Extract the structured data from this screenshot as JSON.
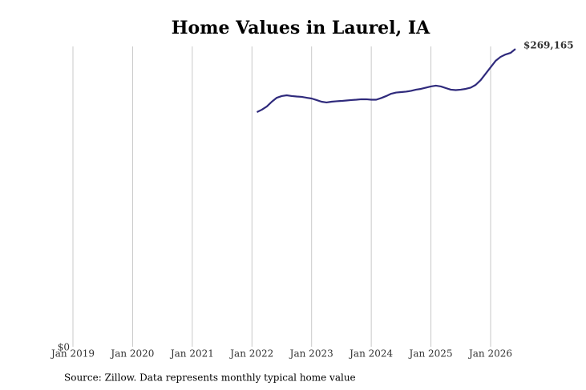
{
  "chart_data": {
    "type": "line",
    "title": "Home Values in Laurel, IA",
    "source": "Source: Zillow. Data represents monthly typical home value",
    "x": [
      "2022-02",
      "2022-03",
      "2022-04",
      "2022-05",
      "2022-06",
      "2022-07",
      "2022-08",
      "2022-09",
      "2022-10",
      "2022-11",
      "2022-12",
      "2023-01",
      "2023-02",
      "2023-03",
      "2023-04",
      "2023-05",
      "2023-06",
      "2023-07",
      "2023-08",
      "2023-09",
      "2023-10",
      "2023-11",
      "2023-12",
      "2024-01",
      "2024-02",
      "2024-03",
      "2024-04",
      "2024-05",
      "2024-06",
      "2024-07",
      "2024-08",
      "2024-09",
      "2024-10",
      "2024-11",
      "2024-12",
      "2025-01",
      "2025-02",
      "2025-03",
      "2025-04",
      "2025-05",
      "2025-06",
      "2025-07",
      "2025-08",
      "2025-09",
      "2025-10",
      "2025-11",
      "2025-12",
      "2026-01",
      "2026-02",
      "2026-03",
      "2026-04",
      "2026-05",
      "2026-06"
    ],
    "series": [
      {
        "name": "Typical home value",
        "color": "#2f2a7c",
        "values": [
          212100,
          214300,
          217200,
          221500,
          225100,
          226600,
          227300,
          226600,
          226200,
          225900,
          225100,
          224400,
          223000,
          221500,
          220800,
          221500,
          221900,
          222200,
          222600,
          223000,
          223300,
          223700,
          223700,
          223300,
          223300,
          224800,
          226600,
          228700,
          229800,
          230200,
          230600,
          231300,
          232400,
          233100,
          234200,
          235300,
          236000,
          235300,
          233800,
          232400,
          232000,
          232400,
          233100,
          234200,
          236700,
          241000,
          246800,
          252600,
          258400,
          262000,
          264200,
          265600,
          269165
        ],
        "value_labels": [
          null,
          null,
          null,
          null,
          null,
          null,
          null,
          null,
          null,
          null,
          null,
          null,
          null,
          null,
          null,
          null,
          null,
          null,
          null,
          null,
          null,
          null,
          null,
          null,
          null,
          null,
          null,
          null,
          null,
          null,
          null,
          null,
          null,
          null,
          null,
          null,
          null,
          null,
          null,
          null,
          null,
          null,
          null,
          null,
          null,
          null,
          null,
          null,
          null,
          null,
          null,
          null,
          "$269,165"
        ]
      }
    ],
    "xlim": [
      "2019-01",
      "2026-06"
    ],
    "xticks": [
      {
        "value": "2019-01",
        "label": "Jan 2019"
      },
      {
        "value": "2020-01",
        "label": "Jan 2020"
      },
      {
        "value": "2021-01",
        "label": "Jan 2021"
      },
      {
        "value": "2022-01",
        "label": "Jan 2022"
      },
      {
        "value": "2023-01",
        "label": "Jan 2023"
      },
      {
        "value": "2024-01",
        "label": "Jan 2024"
      },
      {
        "value": "2025-01",
        "label": "Jan 2025"
      },
      {
        "value": "2026-01",
        "label": "Jan 2026"
      }
    ],
    "ylim": [
      0,
      270000
    ],
    "yticks": [
      {
        "value": 0,
        "label": "$0"
      }
    ],
    "grid": true
  }
}
